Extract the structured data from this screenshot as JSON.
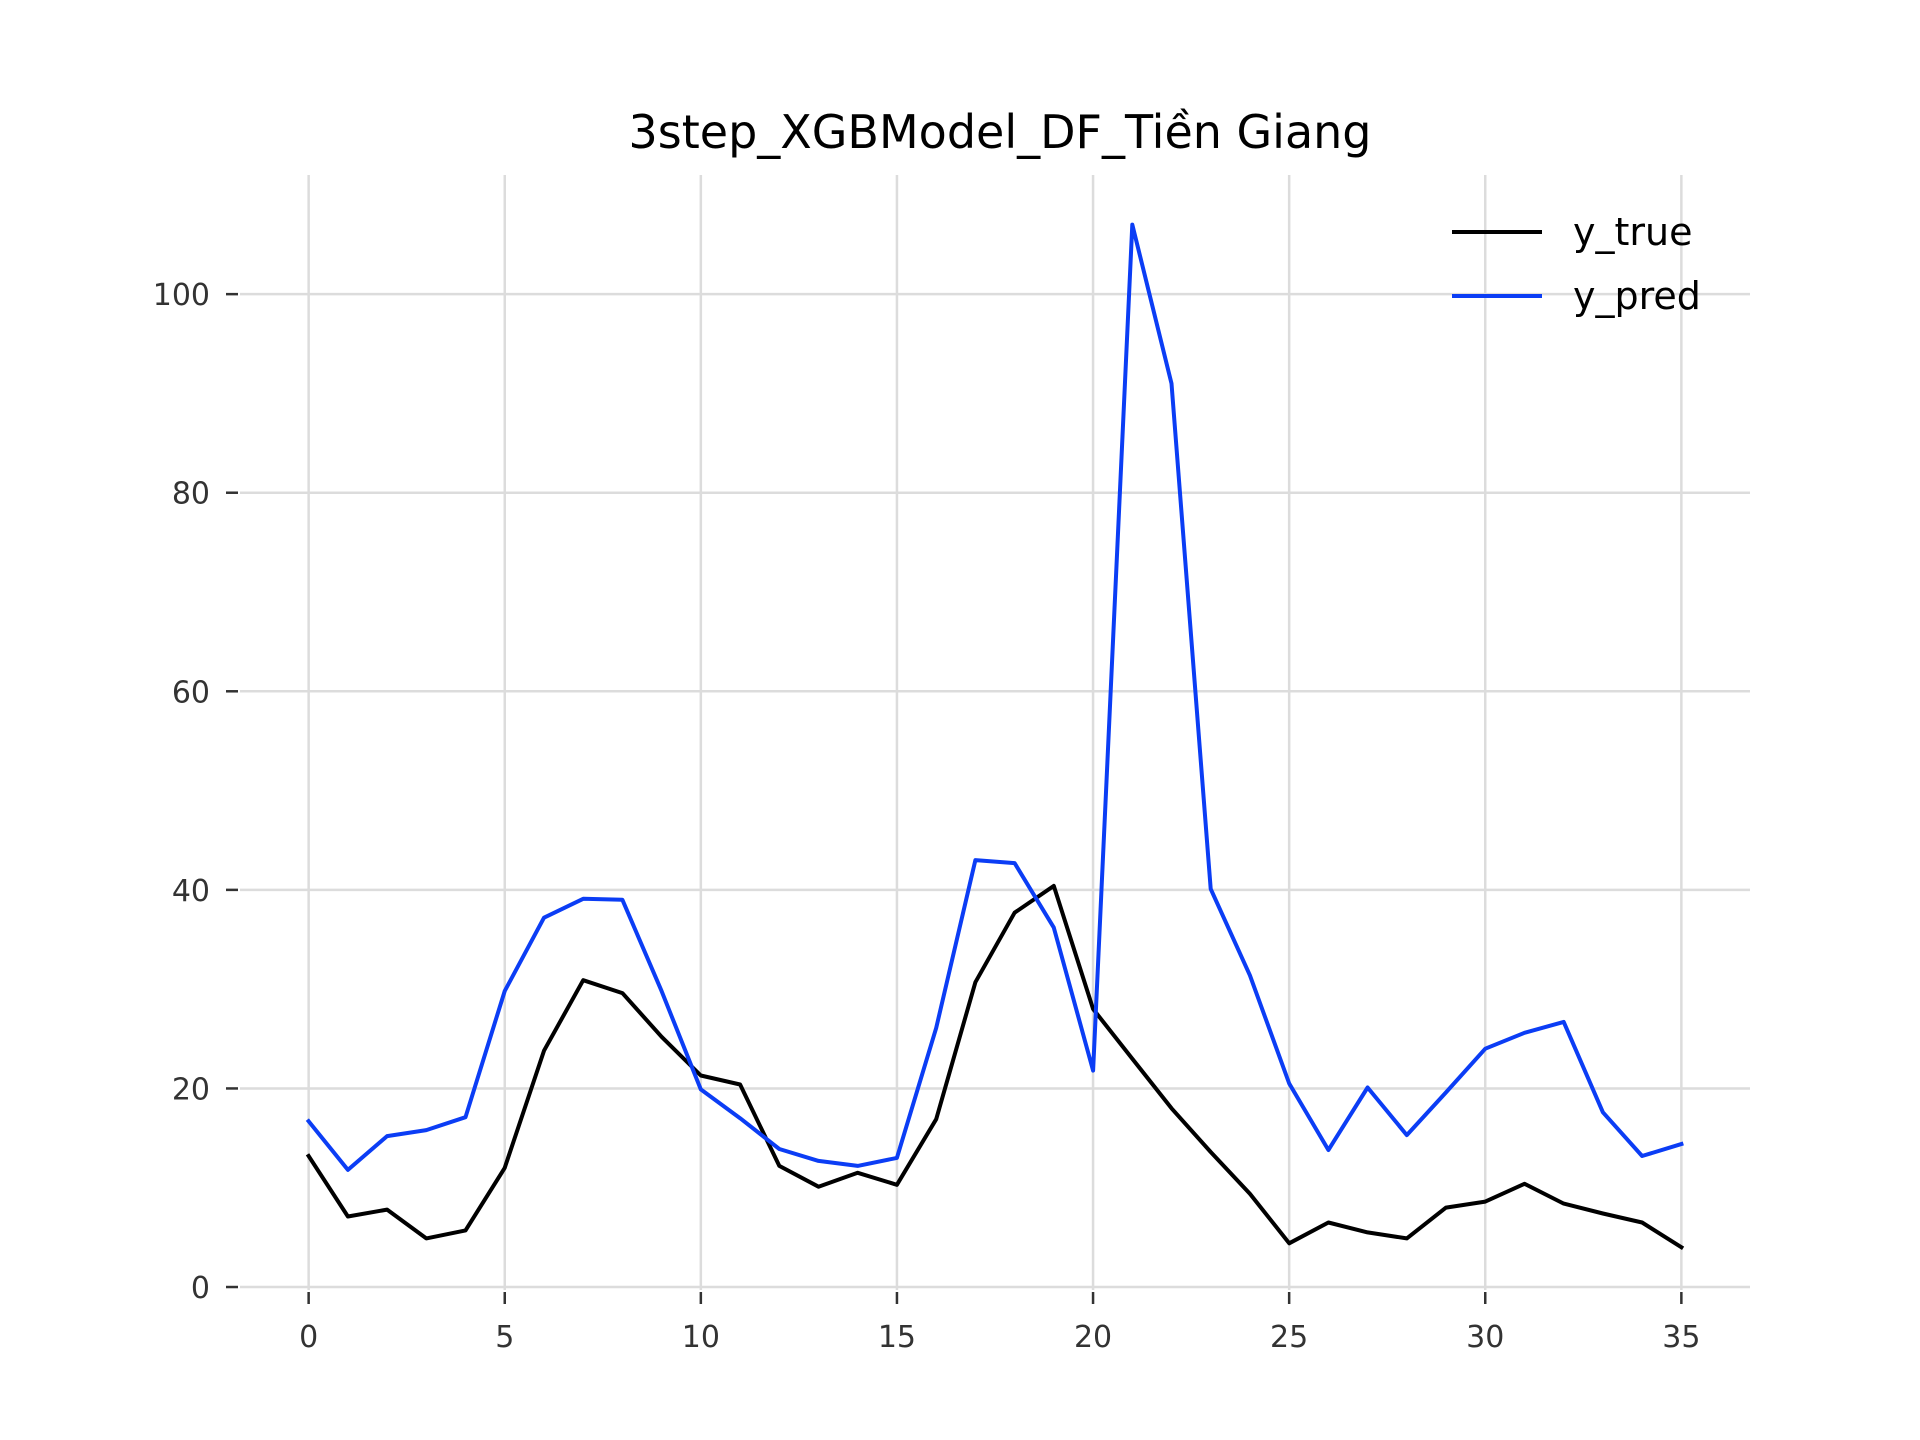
{
  "chart_data": {
    "type": "line",
    "title": "3step_XGBModel_DF_Tiền Giang",
    "xlabel": "",
    "ylabel": "",
    "xlim": [
      -1.75,
      36.75
    ],
    "ylim": [
      -0.3,
      112
    ],
    "xticks": [
      0,
      5,
      10,
      15,
      20,
      25,
      30,
      35
    ],
    "yticks": [
      0,
      20,
      40,
      60,
      80,
      100
    ],
    "grid": true,
    "legend_position": "top-right",
    "x": [
      0,
      1,
      2,
      3,
      4,
      5,
      6,
      7,
      8,
      9,
      10,
      11,
      12,
      13,
      14,
      15,
      16,
      17,
      18,
      19,
      20,
      21,
      22,
      23,
      24,
      25,
      26,
      27,
      28,
      29,
      30,
      31,
      32,
      33,
      34,
      35
    ],
    "series": [
      {
        "name": "y_true",
        "color": "#000000",
        "values": [
          13.2,
          7.1,
          7.8,
          4.9,
          5.7,
          12.0,
          23.8,
          30.9,
          29.6,
          25.2,
          21.3,
          20.4,
          12.2,
          10.1,
          11.5,
          10.3,
          16.9,
          30.7,
          37.7,
          40.4,
          28.0,
          23.0,
          18.0,
          13.6,
          9.4,
          4.4,
          6.5,
          5.5,
          4.9,
          8.0,
          8.6,
          10.4,
          8.4,
          7.4,
          6.5,
          4.0
        ]
      },
      {
        "name": "y_pred",
        "color": "#0b3df5",
        "values": [
          16.7,
          11.8,
          15.2,
          15.8,
          17.1,
          29.8,
          37.2,
          39.1,
          39.0,
          29.8,
          19.9,
          17.0,
          13.9,
          12.7,
          12.2,
          13.0,
          26.1,
          43.0,
          42.7,
          36.2,
          21.8,
          107.0,
          91.0,
          40.1,
          31.4,
          20.5,
          13.8,
          20.1,
          15.3,
          19.6,
          24.0,
          25.6,
          26.7,
          17.6,
          13.2,
          14.4
        ]
      }
    ]
  }
}
